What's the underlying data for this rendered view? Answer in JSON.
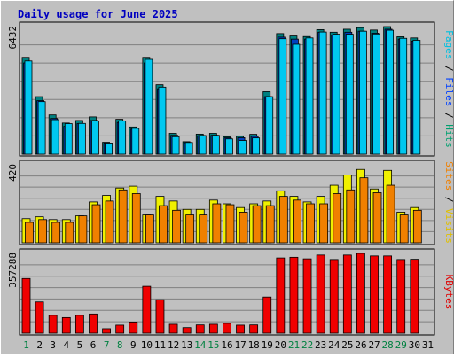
{
  "chart_data": {
    "type": "bar",
    "title": "Daily usage for June 2025",
    "days": [
      "1",
      "2",
      "3",
      "4",
      "5",
      "6",
      "7",
      "8",
      "9",
      "10",
      "11",
      "12",
      "13",
      "14",
      "15",
      "16",
      "17",
      "18",
      "19",
      "20",
      "21",
      "22",
      "23",
      "24",
      "25",
      "26",
      "27",
      "28",
      "29",
      "30",
      "31"
    ],
    "weekend_days": [
      "1",
      "7",
      "8",
      "14",
      "15",
      "21",
      "22",
      "28",
      "29"
    ],
    "panels": [
      {
        "id": "hits_files_pages",
        "ymax_label": "6432",
        "ymax": 6432,
        "axis_label_parts": [
          {
            "text": "Pages",
            "color": "#00c0e0"
          },
          {
            "text": " / ",
            "color": "#000000"
          },
          {
            "text": "Files",
            "color": "#0040ff"
          },
          {
            "text": " / ",
            "color": "#000000"
          },
          {
            "text": "Hits",
            "color": "#00a070"
          }
        ],
        "series": [
          {
            "name": "Hits",
            "color": "#008080",
            "values": [
              4880,
              2900,
              1980,
              1570,
              1700,
              1880,
              600,
              1760,
              1370,
              4880,
              3500,
              1050,
              630,
              1010,
              1050,
              880,
              900,
              1000,
              3150,
              6080,
              5960,
              5930,
              6280,
              6150,
              6300,
              6380,
              6260,
              6520,
              5920,
              5860,
              0
            ]
          },
          {
            "name": "Files",
            "color": "#0040c0",
            "values": [
              4600,
              2700,
              1800,
              1400,
              1540,
              1700,
              560,
              1600,
              1260,
              4600,
              3300,
              950,
              580,
              930,
              950,
              820,
              830,
              900,
              2900,
              5900,
              5800,
              5800,
              6150,
              6000,
              6150,
              6200,
              6100,
              6300,
              5800,
              5700,
              0
            ]
          },
          {
            "name": "Pages",
            "color": "#00c8f0",
            "values": [
              4700,
              2650,
              1740,
              1540,
              1550,
              1680,
              560,
              1680,
              1300,
              4780,
              3380,
              880,
              590,
              940,
              950,
              770,
              690,
              820,
              2900,
              5820,
              5540,
              5860,
              6160,
              6050,
              6050,
              6200,
              6060,
              6250,
              5840,
              5740,
              0
            ]
          }
        ]
      },
      {
        "id": "visits_sites",
        "ymax_label": "420",
        "ymax": 420,
        "axis_label_parts": [
          {
            "text": "Sites",
            "color": "#f08000"
          },
          {
            "text": " / ",
            "color": "#000000"
          },
          {
            "text": "Visits",
            "color": "#e0c000"
          }
        ],
        "series": [
          {
            "name": "Visits",
            "color": "#f0f000",
            "values": [
              130,
              140,
              125,
              125,
              145,
              220,
              255,
              295,
              305,
              150,
              250,
              225,
              180,
              180,
              230,
              210,
              190,
              210,
              225,
              280,
              250,
              220,
              250,
              310,
              365,
              395,
              290,
              390,
              165,
              190,
              0
            ]
          },
          {
            "name": "Sites",
            "color": "#f08000",
            "values": [
              110,
              125,
              110,
              110,
              145,
              205,
              225,
              285,
              265,
              150,
              200,
              175,
              150,
              150,
              210,
              205,
              165,
              200,
              200,
              250,
              230,
              210,
              210,
              265,
              285,
              350,
              270,
              310,
              150,
              175,
              0
            ]
          }
        ]
      },
      {
        "id": "kbytes",
        "ymax_label": "357288",
        "ymax": 357288,
        "axis_label_parts": [
          {
            "text": "KBytes",
            "color": "#e00000"
          }
        ],
        "series": [
          {
            "name": "KBytes",
            "color": "#f00000",
            "values": [
              245000,
              140000,
              80000,
              70000,
              80000,
              86000,
              20000,
              36000,
              50000,
              210000,
              150000,
              40000,
              25000,
              37000,
              40000,
              44000,
              36000,
              37000,
              162000,
              337000,
              340000,
              333000,
              350000,
              330000,
              350000,
              357288,
              346000,
              346000,
              330000,
              331000,
              0
            ]
          }
        ]
      }
    ]
  }
}
